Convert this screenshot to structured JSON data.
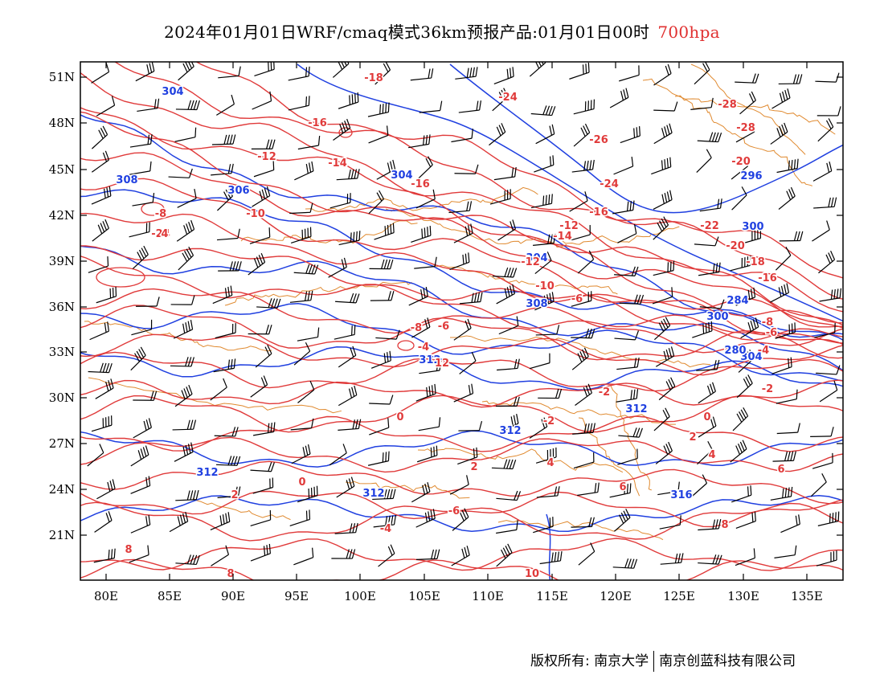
{
  "title": {
    "main": "2024年01月01日WRF/cmaq模式36km预报产品:01月01日00时",
    "level": "700hpa"
  },
  "colors": {
    "temperature": "#e03a3a",
    "height": "#2040e0",
    "border": "#e08a30",
    "wind": "#000000"
  },
  "axes": {
    "lat_labels": [
      "51N",
      "48N",
      "45N",
      "42N",
      "39N",
      "36N",
      "33N",
      "30N",
      "27N",
      "24N",
      "21N"
    ],
    "lon_labels": [
      "80E",
      "85E",
      "90E",
      "95E",
      "100E",
      "105E",
      "110E",
      "115E",
      "120E",
      "125E",
      "130E",
      "135E"
    ]
  },
  "height_labels": [
    "304",
    "308",
    "306",
    "304",
    "304",
    "308",
    "304",
    "300",
    "300",
    "296",
    "284",
    "280",
    "312",
    "312",
    "312",
    "316",
    "312",
    "312"
  ],
  "temp_labels": [
    "-18",
    "-24",
    "-28",
    "-26",
    "-16",
    "-12",
    "-14",
    "-16",
    "-24",
    "-22",
    "-28",
    "-8",
    "-10",
    "-6",
    "-20",
    "-18",
    "-16",
    "-12",
    "-8",
    "-6",
    "-4",
    "-2",
    "0",
    "2",
    "4",
    "6",
    "8",
    "-8",
    "-6",
    "-4",
    "-2",
    "0",
    "2",
    "4",
    "6",
    "8",
    "-10",
    "-12",
    "-14",
    "-16",
    "-20",
    "-24",
    "-6",
    "-4",
    "-2",
    "0",
    "2",
    "4",
    "8",
    "10",
    "12"
  ],
  "footer": {
    "left": "版权所有: 南京大学",
    "right": "南京创蓝科技有限公司"
  }
}
